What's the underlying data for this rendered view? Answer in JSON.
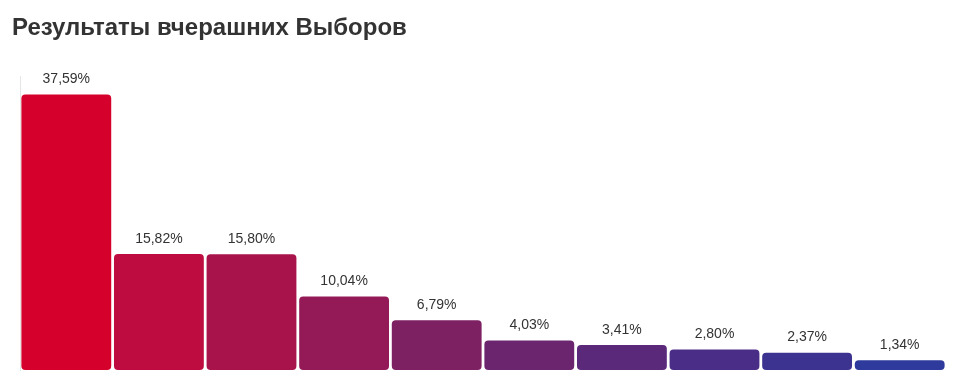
{
  "chart_data": {
    "type": "bar",
    "title": "Результаты вчерашних Выборов",
    "categories": [
      null,
      null,
      null,
      null,
      null,
      null,
      null,
      null,
      null,
      null
    ],
    "values": [
      37.59,
      15.82,
      15.8,
      10.04,
      6.79,
      4.03,
      3.41,
      2.8,
      2.37,
      1.34
    ],
    "value_labels": [
      "37,59%",
      "15,82%",
      "15,80%",
      "10,04%",
      "6,79%",
      "4,03%",
      "3,41%",
      "2,80%",
      "2,37%",
      "1,34%"
    ],
    "colors": [
      "#d5002b",
      "#be0c40",
      "#a9134b",
      "#931a56",
      "#7d2162",
      "#6b256f",
      "#5a297a",
      "#4a2d86",
      "#3c3391",
      "#2e3a9c"
    ],
    "ylim": [
      0,
      40
    ],
    "grid": false,
    "tick_labels": false,
    "data_labels": true
  }
}
